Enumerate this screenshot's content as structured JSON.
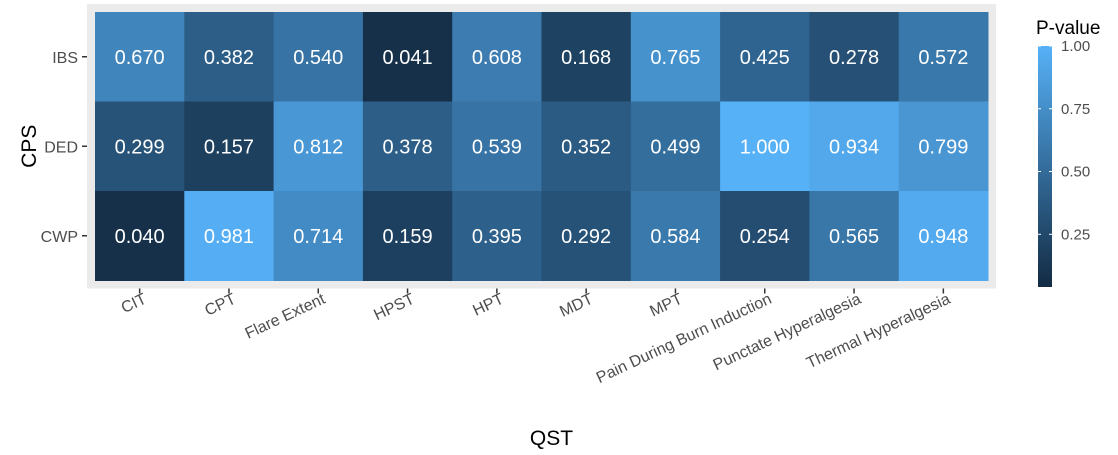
{
  "chart_data": {
    "type": "heatmap",
    "xlabel": "QST",
    "ylabel": "CPS",
    "x_categories": [
      "CIT",
      "CPT",
      "Flare Extent",
      "HPST",
      "HPT",
      "MDT",
      "MPT",
      "Pain During Burn Induction",
      "Punctate Hyperalgesia",
      "Thermal Hyperalgesia"
    ],
    "y_categories": [
      "IBS",
      "DED",
      "CWP"
    ],
    "values": [
      [
        0.67,
        0.382,
        0.54,
        0.041,
        0.608,
        0.168,
        0.765,
        0.425,
        0.278,
        0.572
      ],
      [
        0.299,
        0.157,
        0.812,
        0.378,
        0.539,
        0.352,
        0.499,
        1.0,
        0.934,
        0.799
      ],
      [
        0.04,
        0.981,
        0.714,
        0.159,
        0.395,
        0.292,
        0.584,
        0.254,
        0.565,
        0.948
      ]
    ],
    "value_labels": [
      [
        "0.670",
        "0.382",
        "0.540",
        "0.041",
        "0.608",
        "0.168",
        "0.765",
        "0.425",
        "0.278",
        "0.572"
      ],
      [
        "0.299",
        "0.157",
        "0.812",
        "0.378",
        "0.539",
        "0.352",
        "0.499",
        "1.000",
        "0.934",
        "0.799"
      ],
      [
        "0.040",
        "0.981",
        "0.714",
        "0.159",
        "0.395",
        "0.292",
        "0.584",
        "0.254",
        "0.565",
        "0.948"
      ]
    ],
    "legend": {
      "title": "P-value",
      "ticks": [
        1.0,
        0.75,
        0.5,
        0.25
      ],
      "tick_labels": [
        "1.00",
        "0.75",
        "0.50",
        "0.25"
      ],
      "position": "right",
      "low_color": "#132B43",
      "high_color": "#56B1F7"
    },
    "panel_background": "#EBEBEB",
    "value_label_color": "#ffffff"
  }
}
